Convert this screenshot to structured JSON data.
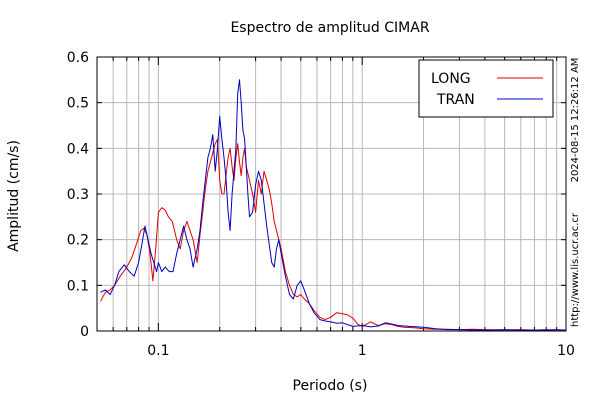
{
  "chart_data": {
    "type": "line",
    "title": "Espectro de amplitud CIMAR",
    "xlabel": "Periodo (s)",
    "ylabel": "Amplitud (cm/s)",
    "x_scale": "log",
    "xlim": [
      0.05,
      10
    ],
    "ylim": [
      0,
      0.6
    ],
    "x_ticks": [
      0.1,
      1,
      10
    ],
    "x_tick_labels": [
      "0.1",
      "1",
      "10"
    ],
    "y_ticks": [
      0,
      0.1,
      0.2,
      0.3,
      0.4,
      0.5,
      0.6
    ],
    "y_tick_labels": [
      "0",
      "0.1",
      "0.2",
      "0.3",
      "0.4",
      "0.5",
      "0.6"
    ],
    "grid": true,
    "legend_position": "top-right",
    "timestamp": "2024-08-15 12:26:12 AM",
    "source_url": "http://www.lis.ucr.ac.cr",
    "series": [
      {
        "name": "LONG",
        "color": "#e00000",
        "x": [
          0.052,
          0.055,
          0.058,
          0.061,
          0.065,
          0.07,
          0.074,
          0.078,
          0.082,
          0.085,
          0.088,
          0.091,
          0.094,
          0.097,
          0.1,
          0.104,
          0.108,
          0.112,
          0.117,
          0.123,
          0.128,
          0.133,
          0.138,
          0.143,
          0.148,
          0.155,
          0.16,
          0.165,
          0.17,
          0.175,
          0.18,
          0.185,
          0.19,
          0.195,
          0.2,
          0.205,
          0.21,
          0.216,
          0.22,
          0.225,
          0.23,
          0.235,
          0.24,
          0.245,
          0.25,
          0.255,
          0.26,
          0.265,
          0.27,
          0.28,
          0.29,
          0.3,
          0.31,
          0.32,
          0.33,
          0.34,
          0.35,
          0.36,
          0.37,
          0.38,
          0.39,
          0.4,
          0.42,
          0.44,
          0.46,
          0.48,
          0.5,
          0.52,
          0.55,
          0.58,
          0.62,
          0.66,
          0.7,
          0.75,
          0.8,
          0.85,
          0.9,
          0.95,
          1.0,
          1.1,
          1.2,
          1.3,
          1.4,
          1.5,
          1.6,
          1.8,
          2.0,
          2.3,
          2.6,
          3.0,
          3.5,
          4.0,
          5.0,
          6.0,
          7.0,
          8.0,
          9.0,
          10.0
        ],
        "y": [
          0.065,
          0.085,
          0.09,
          0.1,
          0.12,
          0.14,
          0.16,
          0.19,
          0.22,
          0.225,
          0.21,
          0.17,
          0.11,
          0.18,
          0.26,
          0.27,
          0.265,
          0.25,
          0.24,
          0.2,
          0.18,
          0.22,
          0.24,
          0.22,
          0.2,
          0.15,
          0.21,
          0.26,
          0.31,
          0.35,
          0.37,
          0.39,
          0.41,
          0.42,
          0.33,
          0.3,
          0.3,
          0.35,
          0.38,
          0.4,
          0.36,
          0.33,
          0.38,
          0.41,
          0.37,
          0.34,
          0.38,
          0.4,
          0.36,
          0.33,
          0.3,
          0.26,
          0.33,
          0.3,
          0.35,
          0.33,
          0.31,
          0.28,
          0.24,
          0.22,
          0.2,
          0.18,
          0.13,
          0.1,
          0.08,
          0.075,
          0.08,
          0.07,
          0.06,
          0.045,
          0.03,
          0.025,
          0.03,
          0.04,
          0.038,
          0.035,
          0.028,
          0.015,
          0.01,
          0.02,
          0.012,
          0.016,
          0.014,
          0.01,
          0.008,
          0.007,
          0.005,
          0.004,
          0.004,
          0.003,
          0.004,
          0.003,
          0.002,
          0.003,
          0.002,
          0.003,
          0.002,
          0.002
        ]
      },
      {
        "name": "TRAN",
        "color": "#0000c0",
        "x": [
          0.052,
          0.055,
          0.058,
          0.061,
          0.064,
          0.068,
          0.072,
          0.076,
          0.08,
          0.083,
          0.086,
          0.089,
          0.092,
          0.095,
          0.098,
          0.1,
          0.104,
          0.108,
          0.113,
          0.118,
          0.123,
          0.128,
          0.133,
          0.138,
          0.143,
          0.148,
          0.155,
          0.16,
          0.165,
          0.17,
          0.175,
          0.18,
          0.185,
          0.19,
          0.195,
          0.2,
          0.205,
          0.21,
          0.215,
          0.22,
          0.225,
          0.23,
          0.235,
          0.24,
          0.245,
          0.25,
          0.255,
          0.26,
          0.265,
          0.27,
          0.275,
          0.28,
          0.29,
          0.3,
          0.31,
          0.32,
          0.33,
          0.34,
          0.35,
          0.36,
          0.37,
          0.38,
          0.39,
          0.4,
          0.42,
          0.44,
          0.46,
          0.48,
          0.5,
          0.52,
          0.55,
          0.58,
          0.62,
          0.66,
          0.7,
          0.75,
          0.8,
          0.9,
          1.0,
          1.1,
          1.2,
          1.3,
          1.4,
          1.5,
          1.7,
          2.0,
          2.3,
          2.6,
          3.0,
          3.5,
          4.0,
          5.0,
          6.0,
          7.0,
          8.0,
          9.0,
          10.0
        ],
        "y": [
          0.085,
          0.09,
          0.08,
          0.1,
          0.13,
          0.145,
          0.13,
          0.12,
          0.15,
          0.19,
          0.23,
          0.2,
          0.17,
          0.15,
          0.13,
          0.15,
          0.13,
          0.14,
          0.13,
          0.13,
          0.17,
          0.2,
          0.23,
          0.2,
          0.18,
          0.14,
          0.18,
          0.22,
          0.28,
          0.33,
          0.38,
          0.4,
          0.43,
          0.35,
          0.4,
          0.47,
          0.42,
          0.38,
          0.33,
          0.26,
          0.22,
          0.3,
          0.35,
          0.4,
          0.52,
          0.55,
          0.5,
          0.44,
          0.42,
          0.36,
          0.3,
          0.25,
          0.26,
          0.32,
          0.35,
          0.33,
          0.28,
          0.23,
          0.19,
          0.15,
          0.14,
          0.18,
          0.2,
          0.17,
          0.12,
          0.08,
          0.07,
          0.1,
          0.11,
          0.09,
          0.06,
          0.04,
          0.025,
          0.022,
          0.02,
          0.017,
          0.018,
          0.01,
          0.012,
          0.009,
          0.011,
          0.018,
          0.015,
          0.012,
          0.01,
          0.008,
          0.005,
          0.003,
          0.003,
          0.002,
          0.002,
          0.003,
          0.002,
          0.002,
          0.002,
          0.003,
          0.002
        ]
      }
    ]
  }
}
